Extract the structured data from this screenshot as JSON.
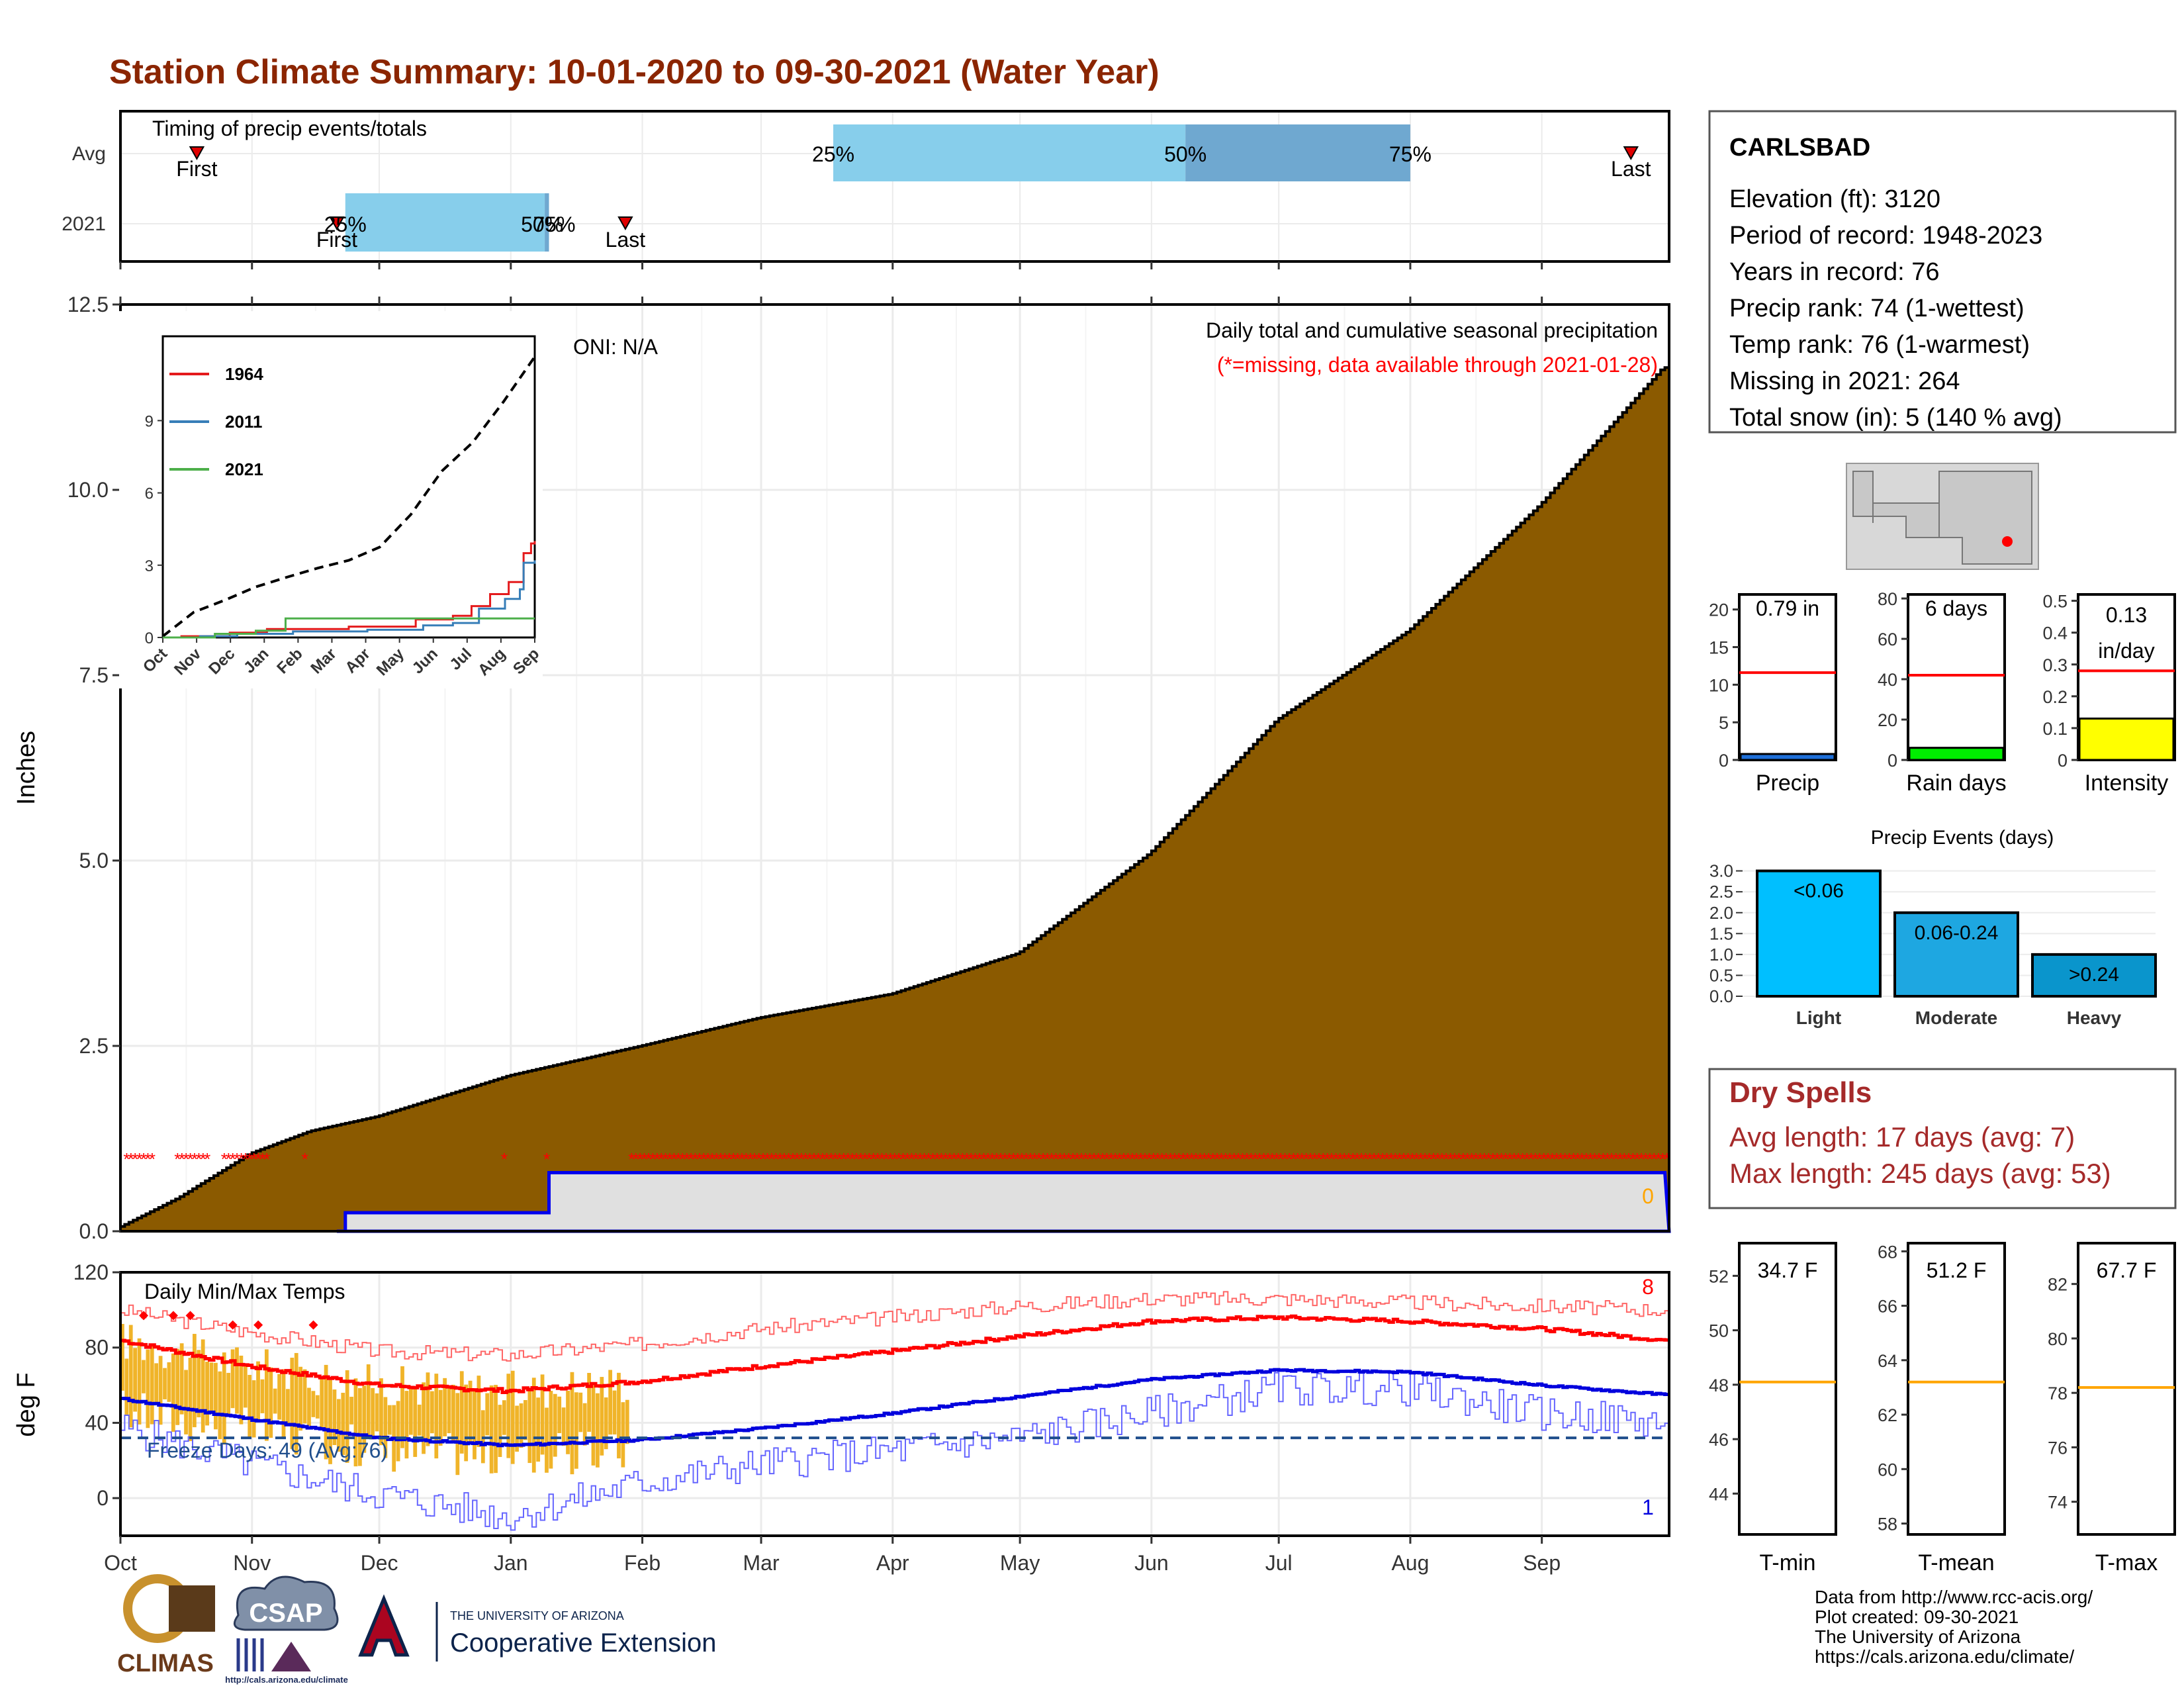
{
  "title": "Station Climate Summary: 10-01-2020 to 09-30-2021 (Water Year)",
  "colors": {
    "title": "#8b2500",
    "precip_fill": "#8b5a00",
    "missing": "#ff0000",
    "temp_bar": "#f0b429",
    "max_line": "#ff0000",
    "min_line": "#0000dd",
    "dry_text": "#a52a2a"
  },
  "timing": {
    "label": "Timing of precip events/totals",
    "rows": [
      "Avg",
      "2021"
    ],
    "avg": {
      "first_label": "First",
      "last_label": "Last",
      "p25": "25%",
      "p50": "50%",
      "p75": "75%",
      "first_date": "2020-10-19",
      "last_date": "2021-09-22",
      "p25_date": "2021-03-18",
      "p50_date": "2021-06-09",
      "p75_date": "2021-08-01"
    },
    "y2021": {
      "first_label": "First",
      "last_label": "Last",
      "p25": "25%",
      "p50": "50%",
      "p75": "75%",
      "first_date": "2020-11-21",
      "last_date": "2021-01-28",
      "p25_date": "2020-11-23",
      "p50_date": "2021-01-09",
      "p75_date": "2021-01-10"
    }
  },
  "main": {
    "ylabel": "Inches",
    "ylim": [
      0,
      12.5
    ],
    "yticks": [
      "0.0",
      "2.5",
      "5.0",
      "7.5",
      "10.0",
      "12.5"
    ],
    "oni": "ONI: N/A",
    "caption": "Daily total and cumulative seasonal precipitation",
    "missing_note": "(*=missing, data available through 2021-01-28)",
    "zero_label": "0"
  },
  "temps": {
    "title": "Daily Min/Max Temps",
    "ylabel": "deg F",
    "ylim": [
      -20,
      120
    ],
    "yticks": [
      "0",
      "40",
      "80",
      "120"
    ],
    "freeze": "Freeze Days: 49 (Avg:76)",
    "freeze_line": 32,
    "count_top": "8",
    "count_bottom": "1"
  },
  "months": [
    "Oct",
    "Nov",
    "Dec",
    "Jan",
    "Feb",
    "Mar",
    "Apr",
    "May",
    "Jun",
    "Jul",
    "Aug",
    "Sep"
  ],
  "inset": {
    "yticks": [
      "0",
      "3",
      "6",
      "9"
    ],
    "months": [
      "Oct",
      "Nov",
      "Dec",
      "Jan",
      "Feb",
      "Mar",
      "Apr",
      "May",
      "Jun",
      "Jul",
      "Aug",
      "Sep"
    ],
    "legend": [
      "1964",
      "2011",
      "2021"
    ],
    "legend_colors": [
      "#e41a1c",
      "#377eb8",
      "#4daf4a"
    ]
  },
  "station": {
    "name": "CARLSBAD",
    "lines": [
      "Elevation (ft): 3120",
      "Period of record: 1948-2023",
      "Years in record: 76",
      "Precip rank: 74 (1-wettest)",
      "Temp rank: 76 (1-warmest)",
      "Missing in 2021: 264",
      "Total snow (in): 5 (140 % avg)"
    ]
  },
  "gauges": [
    {
      "name": "Precip",
      "label": "0.79 in",
      "ymax": 22,
      "ticks": [
        0,
        5,
        10,
        15,
        20
      ],
      "value": 0.79,
      "avg": 11.6,
      "color": "#1e6fd9"
    },
    {
      "name": "Rain days",
      "label": "6 days",
      "ymax": 82,
      "ticks": [
        0,
        20,
        40,
        60,
        80
      ],
      "value": 6,
      "avg": 42,
      "color": "#00ee00"
    },
    {
      "name": "Intensity",
      "label": "0.13",
      "label2": "in/day",
      "ymax": 0.52,
      "ticks": [
        0.0,
        0.1,
        0.2,
        0.3,
        0.4,
        0.5
      ],
      "value": 0.13,
      "avg": 0.28,
      "color": "#ffff00"
    }
  ],
  "events": {
    "title": "Precip Events (days)",
    "categories": [
      "Light",
      "Moderate",
      "Heavy"
    ],
    "labels": [
      "<0.06",
      "0.06-0.24",
      ">0.24"
    ],
    "values": [
      3,
      2,
      1
    ],
    "colors": [
      "#00bfff",
      "#1ea7e1",
      "#0a95cc"
    ],
    "yticks": [
      "0.0",
      "0.5",
      "1.0",
      "1.5",
      "2.0",
      "2.5",
      "3.0"
    ]
  },
  "dry": {
    "title": "Dry Spells",
    "avg": "Avg length: 17 days (avg: 7)",
    "max": "Max length: 245 days (avg: 53)"
  },
  "temp_gauges": [
    {
      "name": "T-min",
      "label": "34.7 F",
      "ymin": 42.5,
      "ymax": 53.2,
      "ticks": [
        44,
        46,
        48,
        50,
        52
      ],
      "avg": 48.1
    },
    {
      "name": "T-mean",
      "label": "51.2 F",
      "ymin": 57.6,
      "ymax": 68.3,
      "ticks": [
        58,
        60,
        62,
        64,
        66,
        68
      ],
      "avg": 63.2
    },
    {
      "name": "T-max",
      "label": "67.7 F",
      "ymin": 72.8,
      "ymax": 83.5,
      "ticks": [
        74,
        76,
        78,
        80,
        82
      ],
      "avg": 78.2
    }
  ],
  "credits": [
    "Data from http://www.rcc-acis.org/",
    "Plot created: 09-30-2021",
    "The University of Arizona",
    "https://cals.arizona.edu/climate/"
  ],
  "logos": {
    "climas": "CLIMAS",
    "csap": "CSAP",
    "csap_url": "http://cals.arizona.edu/climate",
    "ua_line1": "THE UNIVERSITY OF ARIZONA",
    "ua_line2": "Cooperative Extension"
  },
  "chart_data": {
    "type": "area",
    "title": "Station Climate Summary: 10-01-2020 to 09-30-2021 (Water Year)",
    "ylabel": "Inches",
    "ylim": [
      0,
      12.5
    ],
    "x": [
      "2020-10-01",
      "2020-10-15",
      "2020-11-01",
      "2020-11-15",
      "2020-12-01",
      "2021-01-01",
      "2021-02-01",
      "2021-03-01",
      "2021-04-01",
      "2021-05-01",
      "2021-06-01",
      "2021-07-01",
      "2021-08-01",
      "2021-09-01",
      "2021-09-30"
    ],
    "series": [
      {
        "name": "",
        "values": [
          0.05,
          0.45,
          1.05,
          1.35,
          1.55,
          2.1,
          2.5,
          2.88,
          3.2,
          3.75,
          5.1,
          6.9,
          8.1,
          9.8,
          11.65
        ]
      }
    ],
    "year_2021_cumulative": {
      "x": [
        "2020-11-21",
        "2020-11-23",
        "2021-01-09",
        "2021-01-10",
        "2021-09-30"
      ],
      "values": [
        0.0,
        0.25,
        0.25,
        0.79,
        0.79
      ]
    },
    "inset": {
      "type": "line",
      "yticks": [
        0,
        3,
        6,
        9
      ],
      "ylim": [
        0,
        12.5
      ],
      "avg_dashed": [
        0.05,
        1.05,
        1.55,
        2.1,
        2.5,
        2.88,
        3.2,
        3.75,
        5.1,
        6.9,
        8.1,
        9.8,
        11.65
      ]
    },
    "temps": {
      "type": "line",
      "ylim": [
        -20,
        120
      ],
      "x": [
        "2020-10-01",
        "2020-11-01",
        "2020-12-01",
        "2021-01-01",
        "2021-02-01",
        "2021-03-01",
        "2021-04-01",
        "2021-05-01",
        "2021-06-01",
        "2021-07-01",
        "2021-08-01",
        "2021-09-01",
        "2021-09-30"
      ],
      "avg_max": [
        84,
        70,
        60,
        57,
        62,
        70,
        78,
        86,
        94,
        96,
        94,
        90,
        84
      ],
      "avg_min": [
        53,
        42,
        32,
        28,
        31,
        37,
        45,
        54,
        63,
        68,
        67,
        60,
        55
      ],
      "record_max": [
        100,
        88,
        78,
        76,
        82,
        90,
        96,
        102,
        106,
        106,
        104,
        102,
        100
      ],
      "record_min": [
        38,
        18,
        2,
        -10,
        8,
        18,
        25,
        32,
        45,
        58,
        58,
        45,
        40
      ]
    }
  }
}
